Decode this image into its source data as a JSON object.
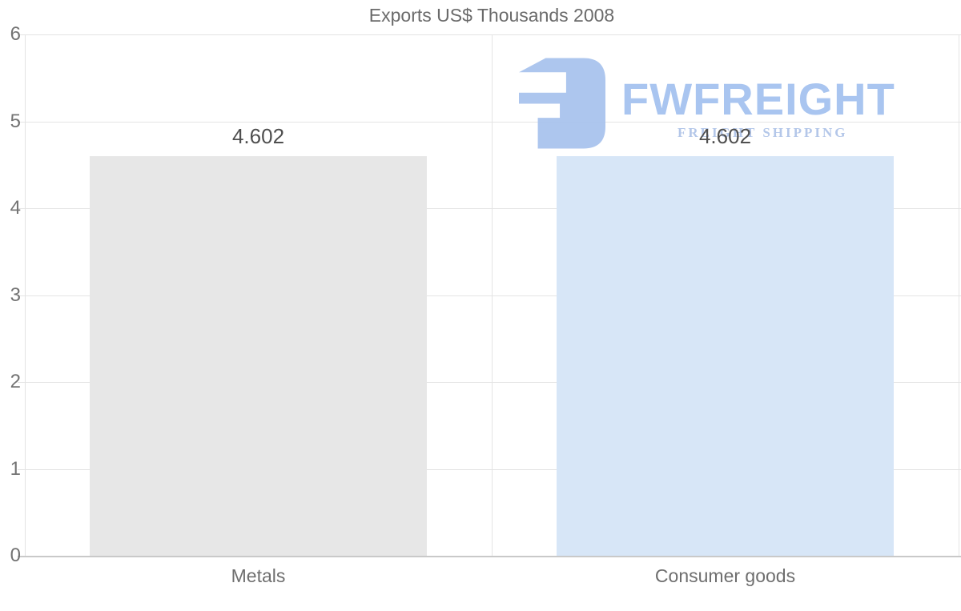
{
  "chart_data": {
    "type": "bar",
    "title": "Exports US$ Thousands 2008",
    "categories": [
      "Metals",
      "Consumer goods"
    ],
    "values": [
      4.602,
      4.602
    ],
    "value_labels": [
      "4.602",
      "4.602"
    ],
    "series_name": "Exports US$ Thousands 2008",
    "bar_colors": [
      "#e7e7e7",
      "#d7e6f7"
    ],
    "xlabel": "",
    "ylabel": "",
    "ylim": [
      0,
      6
    ],
    "yticks": [
      "0",
      "1",
      "2",
      "3",
      "4",
      "5",
      "6"
    ],
    "grid": "on",
    "legend": "none"
  },
  "watermark": {
    "brand": "FWFREIGHT",
    "tagline": "FREIGHT SHIPPING",
    "icon": "fwfreight-logo-icon",
    "icon_color": "#a9c3ee",
    "brand_color": "#a9c5f0",
    "tagline_color": "#b4c7e9"
  },
  "colors": {
    "background": "#ffffff",
    "gridline": "#e4e4e4",
    "axis_line": "#c9c9c9",
    "title_text": "#6a6a6a",
    "tick_text": "#737373",
    "value_text": "#4f4f4f"
  }
}
